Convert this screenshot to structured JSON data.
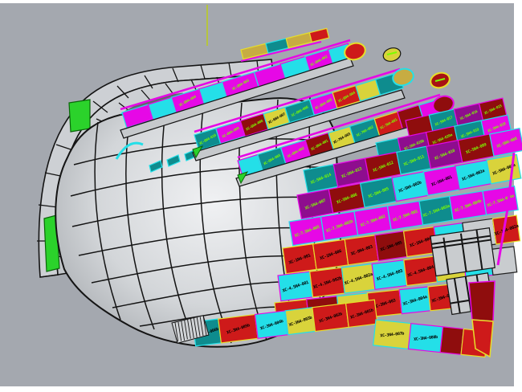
{
  "viewport": {
    "background_color": "#A4A8AF",
    "page_color": "#FFFFFF",
    "axis_line_color": "#BFD400"
  },
  "palette": {
    "fills": {
      "magenta": "#E608E6",
      "cyan": "#24DFE8",
      "teal": "#0E8C8E",
      "purple": "#8E0D8E",
      "red": "#CE1A1A",
      "darkred": "#8F0D0D",
      "yellow": "#D9D33B",
      "olive": "#C7AC42",
      "green": "#2BD22B",
      "gray": "#C9CCCF"
    },
    "outlines": {
      "magenta": "#24DFE8",
      "cyan": "#E608E6",
      "teal": "#24DFE8",
      "purple": "#E608E6",
      "red": "#E6DF2A",
      "darkred": "#E608E6",
      "yellow": "#24DFE8",
      "olive": "#E6DF2A",
      "green": "#063D06",
      "gray": "#222222"
    },
    "label_green": "#7CFC00",
    "label_black": "#000000",
    "hull_highlight_green": "#2BD22B",
    "hull_accent_cyan": "#24DFE8"
  },
  "bands": [
    {
      "name": "deck-strip-1",
      "cells": [
        {
          "label": "",
          "color": "magenta",
          "w": 34
        },
        {
          "label": "",
          "color": "cyan",
          "w": 30
        },
        {
          "label": "XC-8N4-004",
          "color": "magenta",
          "w": 36,
          "text": "g"
        },
        {
          "label": "",
          "color": "cyan",
          "w": 30
        },
        {
          "label": "XC-8N4-003",
          "color": "magenta",
          "w": 42,
          "text": "g"
        },
        {
          "label": "",
          "color": "magenta",
          "w": 34
        },
        {
          "label": "",
          "color": "cyan",
          "w": 32
        },
        {
          "label": "XC-8N4-002",
          "color": "magenta",
          "w": 30,
          "text": "g"
        },
        {
          "label": "",
          "color": "cyan",
          "w": 26
        }
      ]
    },
    {
      "name": "deck-strip-2",
      "cells": [
        {
          "label": "XC-6N4-010",
          "color": "teal",
          "w": 28,
          "text": "g"
        },
        {
          "label": "XC-6N4-009",
          "color": "magenta",
          "w": 32,
          "text": "g"
        },
        {
          "label": "XC-6N4-008",
          "color": "darkred",
          "w": 30,
          "text": "g"
        },
        {
          "label": "XC-6N4-007",
          "color": "yellow",
          "w": 28,
          "text": "k"
        },
        {
          "label": "XC-6N4-006",
          "color": "teal",
          "w": 32,
          "text": "g"
        },
        {
          "label": "XC-6N4-005",
          "color": "magenta",
          "w": 30,
          "text": "g"
        },
        {
          "label": "XC-6N4-004",
          "color": "red",
          "w": 30,
          "text": "g"
        },
        {
          "label": "",
          "color": "yellow",
          "w": 26
        },
        {
          "label": "",
          "color": "teal",
          "w": 30
        }
      ]
    },
    {
      "name": "deck-strip-3",
      "cells": [
        {
          "label": "",
          "color": "cyan",
          "w": 26
        },
        {
          "label": "XC-6N4-003",
          "color": "teal",
          "w": 30,
          "text": "g"
        },
        {
          "label": "XC-6N4-002",
          "color": "magenta",
          "w": 32,
          "text": "g"
        },
        {
          "label": "XC-6N4-001",
          "color": "darkred",
          "w": 30,
          "text": "g"
        },
        {
          "label": "XC-7N4-003",
          "color": "yellow",
          "w": 28,
          "text": "k"
        },
        {
          "label": "XC-7N4-002",
          "color": "teal",
          "w": 32,
          "text": "g"
        },
        {
          "label": "XC-7N4-001",
          "color": "red",
          "w": 30,
          "text": "g"
        },
        {
          "label": "",
          "color": "darkred",
          "w": 28
        },
        {
          "label": "",
          "color": "magenta",
          "w": 26
        }
      ]
    },
    {
      "name": "upper-checker-row-2",
      "cells": [
        {
          "label": "",
          "color": "darkred",
          "w": 30
        },
        {
          "label": "XC-5N4-017",
          "color": "teal",
          "w": 32,
          "text": "g"
        },
        {
          "label": "XC-5N4-016",
          "color": "purple",
          "w": 32,
          "text": "g"
        },
        {
          "label": "XC-5N4-015",
          "color": "darkred",
          "w": 30,
          "text": "g"
        }
      ]
    },
    {
      "name": "upper-checker-row-1",
      "cells": [
        {
          "label": "",
          "color": "teal",
          "w": 28
        },
        {
          "label": "XC-5N4-020b",
          "color": "purple",
          "w": 36,
          "text": "g"
        },
        {
          "label": "XC-5N4-020a",
          "color": "darkred",
          "w": 36,
          "text": "g"
        },
        {
          "label": "XC-5N4-019",
          "color": "teal",
          "w": 34,
          "text": "g"
        },
        {
          "label": "XC-5N4-018",
          "color": "magenta",
          "w": 34,
          "text": "g"
        }
      ]
    },
    {
      "name": "checker-row-1",
      "cells": [
        {
          "label": "XC-5N4-014",
          "color": "teal",
          "w": 38,
          "text": "g"
        },
        {
          "label": "XC-5N4-013",
          "color": "purple",
          "w": 40,
          "text": "g"
        },
        {
          "label": "XC-5N4-012",
          "color": "darkred",
          "w": 40,
          "text": "g"
        },
        {
          "label": "XC-5N4-011",
          "color": "teal",
          "w": 38,
          "text": "g"
        },
        {
          "label": "XC-5N4-010",
          "color": "purple",
          "w": 40,
          "text": "g"
        },
        {
          "label": "XC-5N4-009",
          "color": "darkred",
          "w": 40,
          "text": "g"
        },
        {
          "label": "XC-5N4-008",
          "color": "magenta",
          "w": 38,
          "text": "g"
        }
      ]
    },
    {
      "name": "checker-row-2",
      "cells": [
        {
          "label": "XC-5N4-007",
          "color": "purple",
          "w": 40,
          "text": "g"
        },
        {
          "label": "XC-5N4-006",
          "color": "darkred",
          "w": 40,
          "text": "g"
        },
        {
          "label": "XC-5N4-005",
          "color": "teal",
          "w": 40,
          "text": "g"
        },
        {
          "label": "XC-5N4-002b",
          "color": "cyan",
          "w": 40,
          "text": "k"
        },
        {
          "label": "XC-5N4-001",
          "color": "magenta",
          "w": 40,
          "text": "k"
        },
        {
          "label": "XC-5N4-002a",
          "color": "cyan",
          "w": 40,
          "text": "k"
        },
        {
          "label": "XC-5N4-003a",
          "color": "yellow",
          "w": 38,
          "text": "k"
        }
      ]
    },
    {
      "name": "magenta-row",
      "cells": [
        {
          "label": "XC-7.5N4-005",
          "color": "magenta",
          "w": 40,
          "text": "g"
        },
        {
          "label": "XC-7.5N4-002b",
          "color": "magenta",
          "w": 42,
          "text": "g"
        },
        {
          "label": "XC-7.5N4-002",
          "color": "magenta",
          "w": 42,
          "text": "g"
        },
        {
          "label": "XC-7.5N4-001",
          "color": "magenta",
          "w": 40,
          "text": "g"
        },
        {
          "label": "XC-7.5N4-003a",
          "color": "teal",
          "w": 38,
          "text": "g"
        },
        {
          "label": "XC-7.5N4-004b",
          "color": "magenta",
          "w": 42,
          "text": "g"
        },
        {
          "label": "XC-7.5N4-004a",
          "color": "magenta",
          "w": 40,
          "text": "g"
        }
      ]
    },
    {
      "name": "red-row",
      "cells": [
        {
          "label": "XC-1N4-001",
          "color": "red",
          "w": 38,
          "text": "k"
        },
        {
          "label": "XC-1N4-006",
          "color": "red",
          "w": 40,
          "text": "k"
        },
        {
          "label": "XC-9N4-003",
          "color": "red",
          "w": 38,
          "text": "k"
        },
        {
          "label": "XC-1N4-005",
          "color": "darkred",
          "w": 36,
          "text": "k"
        },
        {
          "label": "XC-1N4-004",
          "color": "red",
          "w": 38,
          "text": "k"
        },
        {
          "label": "XC-1N4-002b",
          "color": "cyan",
          "w": 36,
          "text": "k"
        },
        {
          "label": "",
          "color": "gray",
          "w": 38
        },
        {
          "label": "XC-1N4-002a",
          "color": "red",
          "w": 30,
          "text": "k"
        }
      ]
    },
    {
      "name": "mixed-row",
      "cells": [
        {
          "label": "XC-4.5N4-001",
          "color": "cyan",
          "w": 40,
          "text": "k"
        },
        {
          "label": "XC-4.5N4-002b",
          "color": "red",
          "w": 40,
          "text": "k"
        },
        {
          "label": "XC-4.5N4-002a",
          "color": "yellow",
          "w": 38,
          "text": "k"
        },
        {
          "label": "XC-4.5N4-003",
          "color": "cyan",
          "w": 40,
          "text": "k"
        },
        {
          "label": "XC-4.5N4-004",
          "color": "red",
          "w": 38,
          "text": "k"
        },
        {
          "label": "XC-4.5N4-005b",
          "color": "yellow",
          "w": 36,
          "text": "k"
        },
        {
          "label": "XC-4.5N4-005a",
          "color": "cyan",
          "w": 34,
          "text": "k"
        },
        {
          "label": "",
          "color": "gray",
          "w": 30
        }
      ]
    },
    {
      "name": "lower-red-row",
      "cells": [
        {
          "label": "XC-3N4-001",
          "color": "red",
          "w": 40,
          "text": "k"
        },
        {
          "label": "XC-3N4-006",
          "color": "darkred",
          "w": 38,
          "text": "k"
        },
        {
          "label": "XC-3N4-002b",
          "color": "yellow",
          "w": 38,
          "text": "k"
        },
        {
          "label": "XC-3N4-003",
          "color": "red",
          "w": 40,
          "text": "k"
        },
        {
          "label": "XC-3N4-004a",
          "color": "cyan",
          "w": 36,
          "text": "k"
        },
        {
          "label": "XC-3N4-005a",
          "color": "red",
          "w": 36,
          "text": "k"
        },
        {
          "label": "XC-3N4-006a",
          "color": "darkred",
          "w": 32,
          "text": "k"
        }
      ]
    },
    {
      "name": "bottom-row",
      "cells": [
        {
          "label": "XC-3N4-006b",
          "color": "teal",
          "w": 32,
          "text": "k"
        },
        {
          "label": "XC-3N4-005b",
          "color": "red",
          "w": 46,
          "text": "k"
        },
        {
          "label": "XC-3N4-004b",
          "color": "cyan",
          "w": 38,
          "text": "k"
        },
        {
          "label": "XC-3N4-003b",
          "color": "yellow",
          "w": 34,
          "text": "k"
        },
        {
          "label": "XC-3N4-002b",
          "color": "red",
          "w": 42,
          "text": "k"
        },
        {
          "label": "XC-3N4-001b",
          "color": "red",
          "w": 36,
          "text": "k"
        }
      ]
    },
    {
      "name": "bottom-right-row",
      "cells": [
        {
          "label": "XC-3N4-007b",
          "color": "yellow",
          "w": 44,
          "text": "k"
        },
        {
          "label": "XC-3N4-008b",
          "color": "cyan",
          "w": 40,
          "text": "k"
        },
        {
          "label": "",
          "color": "darkred",
          "w": 26
        },
        {
          "label": "",
          "color": "red",
          "w": 30
        }
      ]
    },
    {
      "name": "top-tip-strip",
      "cells": [
        {
          "label": "",
          "color": "olive",
          "w": 32
        },
        {
          "label": "",
          "color": "teal",
          "w": 26
        },
        {
          "label": "",
          "color": "olive",
          "w": 30
        },
        {
          "label": "",
          "color": "red",
          "w": 22
        }
      ]
    }
  ]
}
